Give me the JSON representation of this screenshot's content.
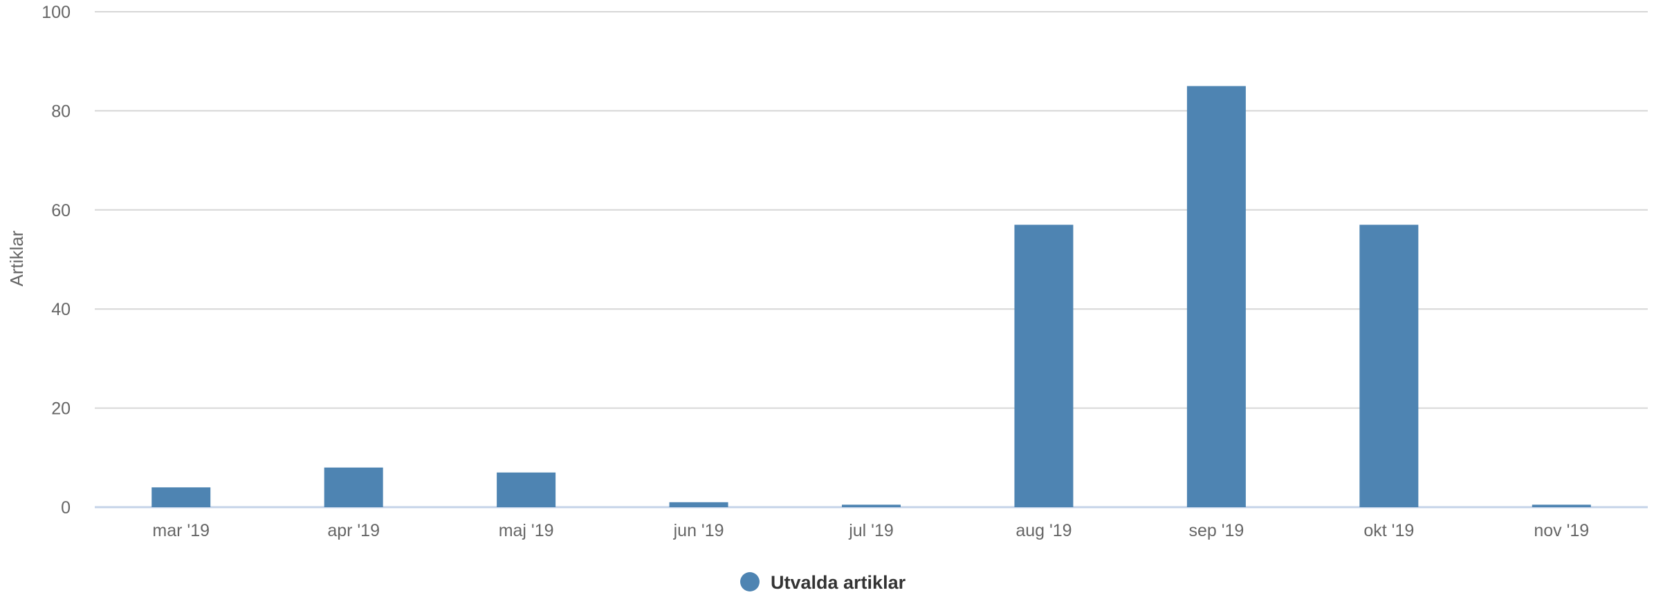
{
  "chart_data": {
    "type": "bar",
    "categories": [
      "mar '19",
      "apr '19",
      "maj '19",
      "jun '19",
      "jul '19",
      "aug '19",
      "sep '19",
      "okt '19",
      "nov '19"
    ],
    "series": [
      {
        "name": "Utvalda artiklar",
        "color": "#4e84b2",
        "values": [
          4,
          8,
          7,
          1,
          0.5,
          57,
          85,
          57,
          0.5
        ]
      }
    ],
    "title": "",
    "xlabel": "",
    "ylabel": "Artiklar",
    "ylim": [
      0,
      100
    ],
    "yticks": [
      0,
      20,
      40,
      60,
      80,
      100
    ],
    "grid": true,
    "legend_position": "bottom-center"
  }
}
